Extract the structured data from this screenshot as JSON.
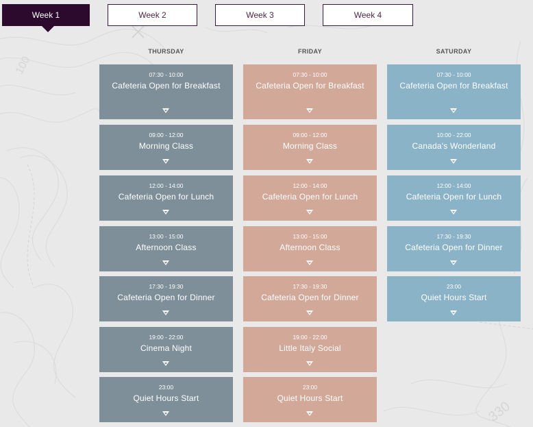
{
  "tabs": [
    {
      "label": "Week 1",
      "active": true
    },
    {
      "label": "Week 2",
      "active": false
    },
    {
      "label": "Week 3",
      "active": false
    },
    {
      "label": "Week 4",
      "active": false
    }
  ],
  "background": {
    "map_labels": [
      "100",
      "330"
    ]
  },
  "colors": {
    "thursday": "#7e8f99",
    "friday": "#d2a899",
    "saturday": "#8ab3c8",
    "active_tab": "#2c0a2e"
  },
  "days": [
    {
      "name": "THURSDAY",
      "events": [
        {
          "time": "07:30 - 10:00",
          "title": "Cafeteria Open for Breakfast"
        },
        {
          "time": "09:00 - 12:00",
          "title": "Morning Class"
        },
        {
          "time": "12:00 - 14:00",
          "title": "Cafeteria Open for Lunch"
        },
        {
          "time": "13:00 - 15:00",
          "title": "Afternoon Class"
        },
        {
          "time": "17:30 - 19:30",
          "title": "Cafeteria Open for Dinner"
        },
        {
          "time": "19:00 - 22:00",
          "title": "Cinema Night"
        },
        {
          "time": "23:00",
          "title": "Quiet Hours Start"
        }
      ]
    },
    {
      "name": "FRIDAY",
      "events": [
        {
          "time": "07:30 - 10:00",
          "title": "Cafeteria Open for Breakfast"
        },
        {
          "time": "09:00 - 12:00",
          "title": "Morning Class"
        },
        {
          "time": "12:00 - 14:00",
          "title": "Cafeteria Open for Lunch"
        },
        {
          "time": "13:00 - 15:00",
          "title": "Afternoon Class"
        },
        {
          "time": "17:30 - 19:30",
          "title": "Cafeteria Open for Dinner"
        },
        {
          "time": "19:00 - 22:00",
          "title": "Little Italy Social"
        },
        {
          "time": "23:00",
          "title": "Quiet Hours Start"
        }
      ]
    },
    {
      "name": "SATURDAY",
      "events": [
        {
          "time": "07:30 - 10:00",
          "title": "Cafeteria Open for Breakfast"
        },
        {
          "time": "10:00 - 22:00",
          "title": "Canada's Wonderland"
        },
        {
          "time": "12:00 - 14:00",
          "title": "Cafeteria Open for Lunch"
        },
        {
          "time": "17:30 - 19:30",
          "title": "Cafeteria Open for Dinner"
        },
        {
          "time": "23:00",
          "title": "Quiet Hours Start"
        }
      ]
    }
  ]
}
